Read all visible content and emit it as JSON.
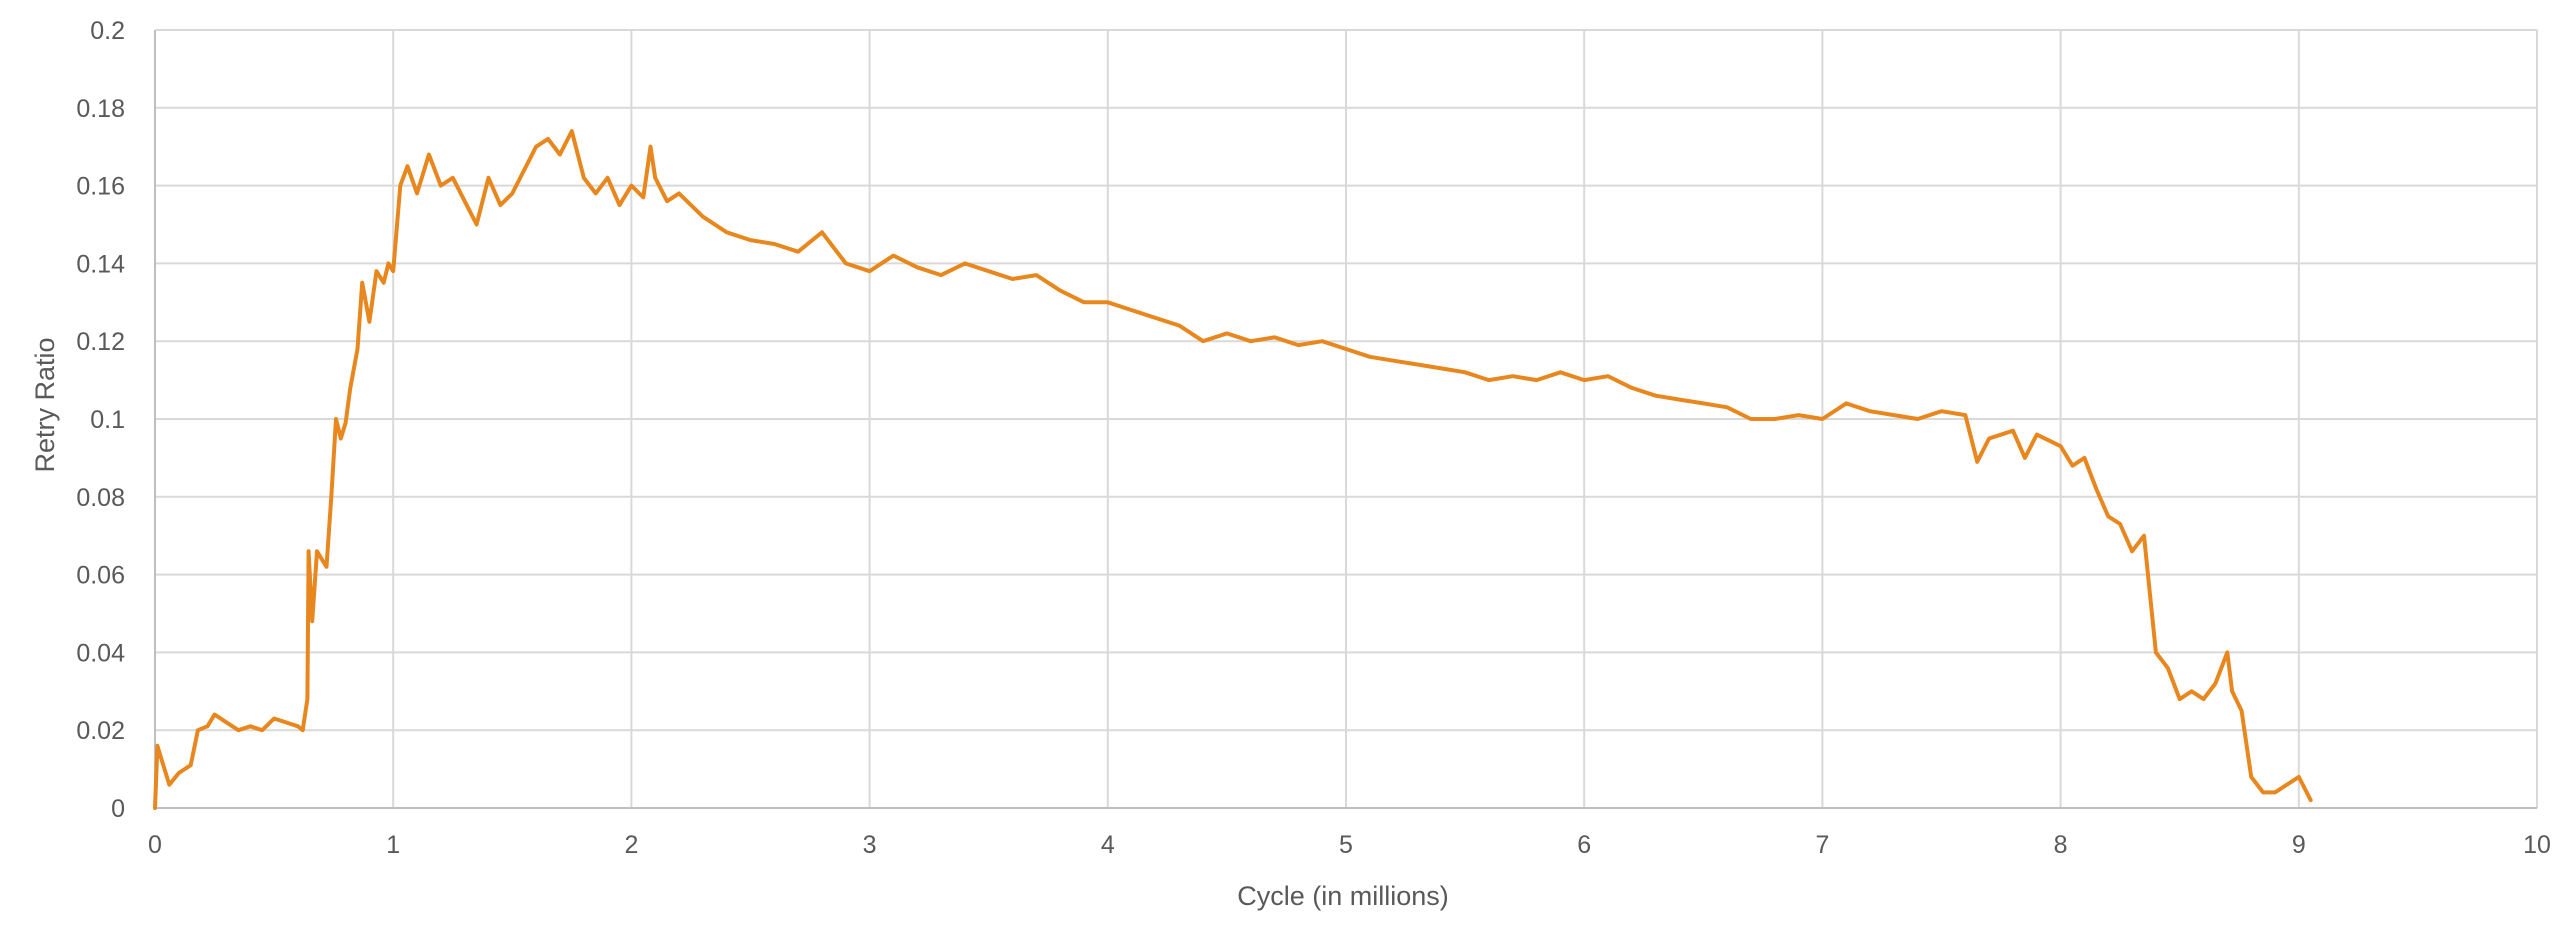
{
  "chart_data": {
    "type": "line",
    "title": "",
    "xlabel": "Cycle (in millions)",
    "ylabel": "Retry Ratio",
    "xlim": [
      0,
      10
    ],
    "ylim": [
      0,
      0.2
    ],
    "x_ticks": [
      "0",
      "1",
      "2",
      "3",
      "4",
      "5",
      "6",
      "7",
      "8",
      "9",
      "10"
    ],
    "y_ticks": [
      "0",
      "0.02",
      "0.04",
      "0.06",
      "0.08",
      "0.1",
      "0.12",
      "0.14",
      "0.16",
      "0.18",
      "0.2"
    ],
    "grid": true,
    "legend": "none",
    "series_color": "#e8871e",
    "series": [
      {
        "points": [
          [
            0.0,
            0.0
          ],
          [
            0.01,
            0.016
          ],
          [
            0.03,
            0.012
          ],
          [
            0.06,
            0.006
          ],
          [
            0.1,
            0.009
          ],
          [
            0.15,
            0.011
          ],
          [
            0.18,
            0.02
          ],
          [
            0.22,
            0.021
          ],
          [
            0.25,
            0.024
          ],
          [
            0.3,
            0.022
          ],
          [
            0.35,
            0.02
          ],
          [
            0.4,
            0.021
          ],
          [
            0.45,
            0.02
          ],
          [
            0.5,
            0.023
          ],
          [
            0.55,
            0.022
          ],
          [
            0.6,
            0.021
          ],
          [
            0.62,
            0.02
          ],
          [
            0.64,
            0.028
          ],
          [
            0.645,
            0.066
          ],
          [
            0.66,
            0.048
          ],
          [
            0.68,
            0.066
          ],
          [
            0.72,
            0.062
          ],
          [
            0.74,
            0.08
          ],
          [
            0.76,
            0.1
          ],
          [
            0.78,
            0.095
          ],
          [
            0.8,
            0.099
          ],
          [
            0.82,
            0.108
          ],
          [
            0.85,
            0.118
          ],
          [
            0.87,
            0.135
          ],
          [
            0.9,
            0.125
          ],
          [
            0.93,
            0.138
          ],
          [
            0.96,
            0.135
          ],
          [
            0.98,
            0.14
          ],
          [
            1.0,
            0.138
          ],
          [
            1.03,
            0.16
          ],
          [
            1.06,
            0.165
          ],
          [
            1.1,
            0.158
          ],
          [
            1.15,
            0.168
          ],
          [
            1.2,
            0.16
          ],
          [
            1.25,
            0.162
          ],
          [
            1.3,
            0.156
          ],
          [
            1.35,
            0.15
          ],
          [
            1.4,
            0.162
          ],
          [
            1.45,
            0.155
          ],
          [
            1.5,
            0.158
          ],
          [
            1.55,
            0.164
          ],
          [
            1.6,
            0.17
          ],
          [
            1.65,
            0.172
          ],
          [
            1.7,
            0.168
          ],
          [
            1.75,
            0.174
          ],
          [
            1.8,
            0.162
          ],
          [
            1.85,
            0.158
          ],
          [
            1.9,
            0.162
          ],
          [
            1.95,
            0.155
          ],
          [
            2.0,
            0.16
          ],
          [
            2.05,
            0.157
          ],
          [
            2.08,
            0.17
          ],
          [
            2.1,
            0.162
          ],
          [
            2.15,
            0.156
          ],
          [
            2.2,
            0.158
          ],
          [
            2.3,
            0.152
          ],
          [
            2.4,
            0.148
          ],
          [
            2.5,
            0.146
          ],
          [
            2.6,
            0.145
          ],
          [
            2.7,
            0.143
          ],
          [
            2.8,
            0.148
          ],
          [
            2.9,
            0.14
          ],
          [
            3.0,
            0.138
          ],
          [
            3.1,
            0.142
          ],
          [
            3.2,
            0.139
          ],
          [
            3.3,
            0.137
          ],
          [
            3.4,
            0.14
          ],
          [
            3.5,
            0.138
          ],
          [
            3.6,
            0.136
          ],
          [
            3.7,
            0.137
          ],
          [
            3.8,
            0.133
          ],
          [
            3.9,
            0.13
          ],
          [
            4.0,
            0.13
          ],
          [
            4.1,
            0.128
          ],
          [
            4.2,
            0.126
          ],
          [
            4.3,
            0.124
          ],
          [
            4.4,
            0.12
          ],
          [
            4.5,
            0.122
          ],
          [
            4.6,
            0.12
          ],
          [
            4.7,
            0.121
          ],
          [
            4.8,
            0.119
          ],
          [
            4.9,
            0.12
          ],
          [
            5.0,
            0.118
          ],
          [
            5.1,
            0.116
          ],
          [
            5.2,
            0.115
          ],
          [
            5.3,
            0.114
          ],
          [
            5.4,
            0.113
          ],
          [
            5.5,
            0.112
          ],
          [
            5.6,
            0.11
          ],
          [
            5.7,
            0.111
          ],
          [
            5.8,
            0.11
          ],
          [
            5.9,
            0.112
          ],
          [
            6.0,
            0.11
          ],
          [
            6.1,
            0.111
          ],
          [
            6.2,
            0.108
          ],
          [
            6.3,
            0.106
          ],
          [
            6.4,
            0.105
          ],
          [
            6.5,
            0.104
          ],
          [
            6.6,
            0.103
          ],
          [
            6.7,
            0.1
          ],
          [
            6.8,
            0.1
          ],
          [
            6.9,
            0.101
          ],
          [
            7.0,
            0.1
          ],
          [
            7.1,
            0.104
          ],
          [
            7.2,
            0.102
          ],
          [
            7.3,
            0.101
          ],
          [
            7.4,
            0.1
          ],
          [
            7.5,
            0.102
          ],
          [
            7.6,
            0.101
          ],
          [
            7.65,
            0.089
          ],
          [
            7.7,
            0.095
          ],
          [
            7.8,
            0.097
          ],
          [
            7.85,
            0.09
          ],
          [
            7.9,
            0.096
          ],
          [
            8.0,
            0.093
          ],
          [
            8.05,
            0.088
          ],
          [
            8.1,
            0.09
          ],
          [
            8.15,
            0.082
          ],
          [
            8.2,
            0.075
          ],
          [
            8.25,
            0.073
          ],
          [
            8.3,
            0.066
          ],
          [
            8.35,
            0.07
          ],
          [
            8.4,
            0.04
          ],
          [
            8.45,
            0.036
          ],
          [
            8.5,
            0.028
          ],
          [
            8.55,
            0.03
          ],
          [
            8.6,
            0.028
          ],
          [
            8.65,
            0.032
          ],
          [
            8.7,
            0.04
          ],
          [
            8.72,
            0.03
          ],
          [
            8.76,
            0.025
          ],
          [
            8.8,
            0.008
          ],
          [
            8.85,
            0.004
          ],
          [
            8.9,
            0.004
          ],
          [
            8.95,
            0.006
          ],
          [
            9.0,
            0.008
          ],
          [
            9.05,
            0.002
          ]
        ]
      }
    ]
  }
}
